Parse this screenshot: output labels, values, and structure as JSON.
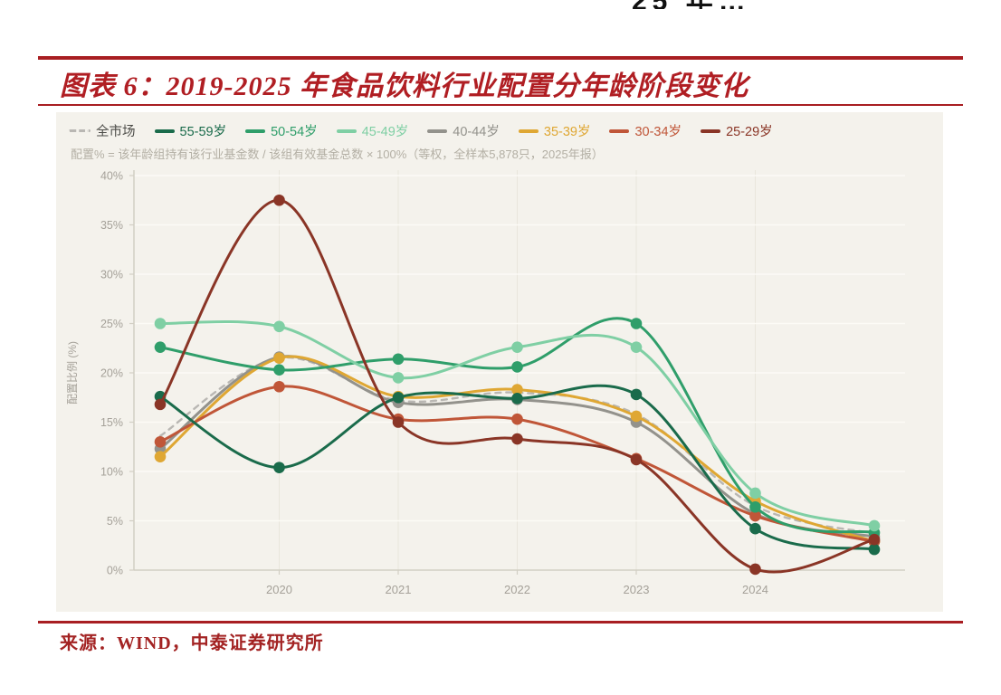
{
  "page": {
    "top_fragment": "25 年…"
  },
  "header": {
    "figure_title": "图表 6：2019-2025 年食品饮料行业配置分年龄阶段变化"
  },
  "chart_data": {
    "type": "line",
    "title": "图表 6：2019-2025 年食品饮料行业配置分年龄阶段变化",
    "subtitle": "配置% = 该年龄组持有该行业基金数 / 该组有效基金总数 × 100%（等权，全样本5,878只，2025年报）",
    "ylabel": "配置比例 (%)",
    "ylim": [
      0,
      40
    ],
    "yticks": [
      "0%",
      "5%",
      "10%",
      "15%",
      "20%",
      "25%",
      "30%",
      "35%",
      "40%"
    ],
    "x": [
      2019,
      2020,
      2021,
      2022,
      2023,
      2024,
      2025
    ],
    "x_tick_labels": [
      "2020",
      "2021",
      "2022",
      "2023",
      "2024"
    ],
    "x_tick_positions": [
      1,
      2,
      3,
      4,
      5
    ],
    "legend_position": "top-left",
    "grid": true,
    "background": "#f4f2ec",
    "draw_order": [
      0,
      4,
      5,
      6,
      2,
      3,
      1,
      7
    ],
    "series": [
      {
        "name": "全市场",
        "color": "#b9b7b3",
        "label_color": "#4c4c48",
        "dashed": true,
        "values": [
          13.6,
          21.5,
          17.2,
          18.0,
          15.8,
          6.5,
          3.7
        ]
      },
      {
        "name": "55-59岁",
        "color": "#1a6b4b",
        "values": [
          17.6,
          10.4,
          17.5,
          17.4,
          17.8,
          4.2,
          2.1
        ]
      },
      {
        "name": "50-54岁",
        "color": "#2f9e6a",
        "values": [
          22.6,
          20.3,
          21.4,
          20.6,
          25.0,
          6.4,
          3.8
        ]
      },
      {
        "name": "45-49岁",
        "color": "#7fcfa4",
        "values": [
          25.0,
          24.7,
          19.5,
          22.6,
          22.6,
          7.8,
          4.5
        ]
      },
      {
        "name": "40-44岁",
        "color": "#93928c",
        "values": [
          12.3,
          21.6,
          17.0,
          17.3,
          15.0,
          5.7,
          3.4
        ]
      },
      {
        "name": "35-39岁",
        "color": "#dfa733",
        "values": [
          11.5,
          21.5,
          17.6,
          18.3,
          15.6,
          7.0,
          2.9
        ]
      },
      {
        "name": "30-34岁",
        "color": "#c05638",
        "values": [
          13.0,
          18.6,
          15.3,
          15.3,
          11.3,
          5.5,
          2.9
        ]
      },
      {
        "name": "25-29岁",
        "color": "#8a3526",
        "values": [
          16.8,
          37.5,
          15.0,
          13.3,
          11.2,
          0.1,
          3.1
        ]
      }
    ]
  },
  "footer": {
    "source": "来源：WIND，中泰证券研究所"
  },
  "colors": {
    "accent_red": "#a81e22",
    "title_red": "#b01e23",
    "panel_bg": "#f4f2ec",
    "tick_text": "#a5a199",
    "subtitle_text": "#b3afa4",
    "grid_white": "#fdfcf8",
    "axis_line": "#d2cfc4"
  }
}
